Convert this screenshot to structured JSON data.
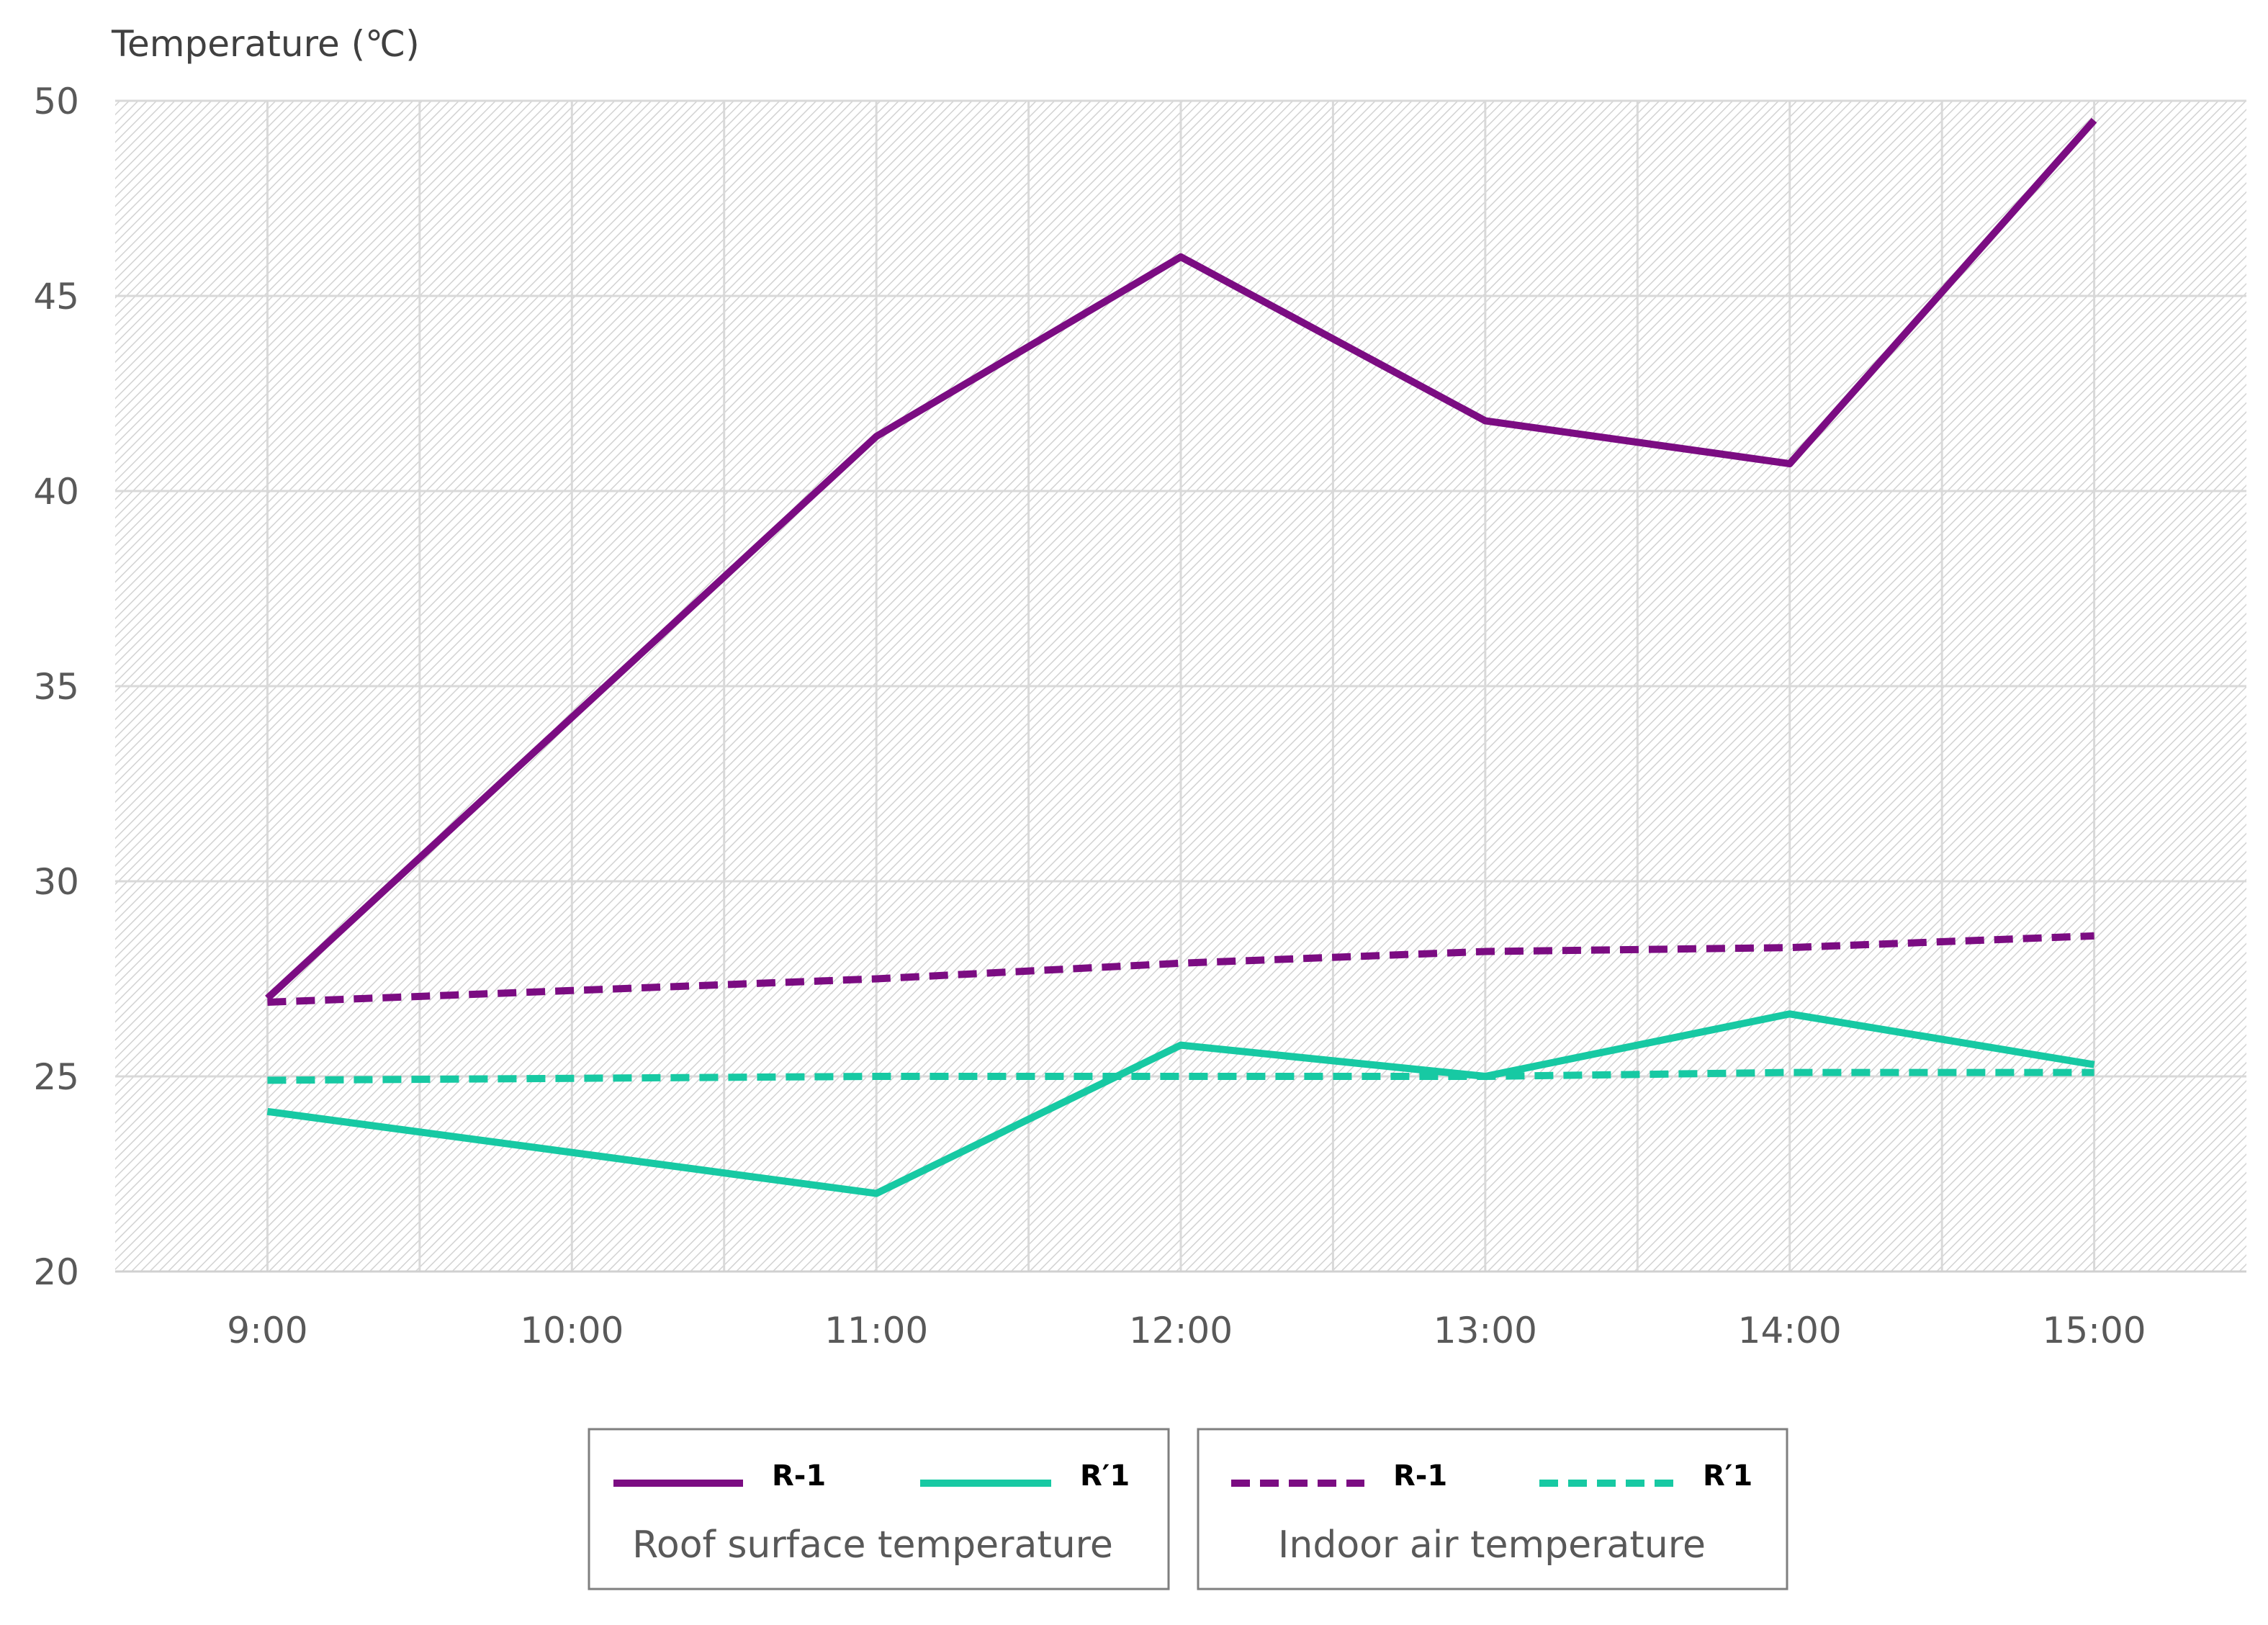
{
  "chart_data": {
    "type": "line",
    "title": "",
    "ylabel": "Temperature (℃)",
    "xlabel": "",
    "ylim": [
      20,
      50
    ],
    "yticks": [
      20,
      25,
      30,
      35,
      40,
      45,
      50
    ],
    "grid": true,
    "categories": [
      "9:00",
      "10:00",
      "11:00",
      "12:00",
      "13:00",
      "14:00",
      "15:00"
    ],
    "series": [
      {
        "name": "R-1",
        "group": "Roof surface temperature",
        "style": "solid",
        "color": "#7B0C82",
        "x": [
          "9:00",
          "11:00",
          "12:00",
          "13:00",
          "14:00",
          "15:00"
        ],
        "values": [
          27.0,
          41.4,
          46.0,
          41.8,
          40.7,
          49.5
        ]
      },
      {
        "name": "R′1",
        "group": "Roof surface temperature",
        "style": "solid",
        "color": "#17C9A3",
        "x": [
          "9:00",
          "11:00",
          "12:00",
          "13:00",
          "14:00",
          "15:00"
        ],
        "values": [
          24.1,
          22.0,
          25.8,
          25.0,
          26.6,
          25.3
        ]
      },
      {
        "name": "R-1",
        "group": "Indoor air temperature",
        "style": "dashed",
        "color": "#7B0C82",
        "x": [
          "9:00",
          "11:00",
          "12:00",
          "13:00",
          "14:00",
          "15:00"
        ],
        "values": [
          26.9,
          27.5,
          27.9,
          28.2,
          28.3,
          28.6
        ]
      },
      {
        "name": "R′1",
        "group": "Indoor air temperature",
        "style": "dashed",
        "color": "#17C9A3",
        "x": [
          "9:00",
          "11:00",
          "12:00",
          "13:00",
          "14:00",
          "15:00"
        ],
        "values": [
          24.9,
          25.0,
          25.0,
          25.0,
          25.1,
          25.1
        ]
      }
    ],
    "legend": {
      "placement": "bottom",
      "groups": [
        {
          "title": "Roof surface temperature",
          "entries": [
            "R-1",
            "R′1"
          ]
        },
        {
          "title": "Indoor air temperature",
          "entries": [
            "R-1",
            "R′1"
          ]
        }
      ]
    }
  }
}
